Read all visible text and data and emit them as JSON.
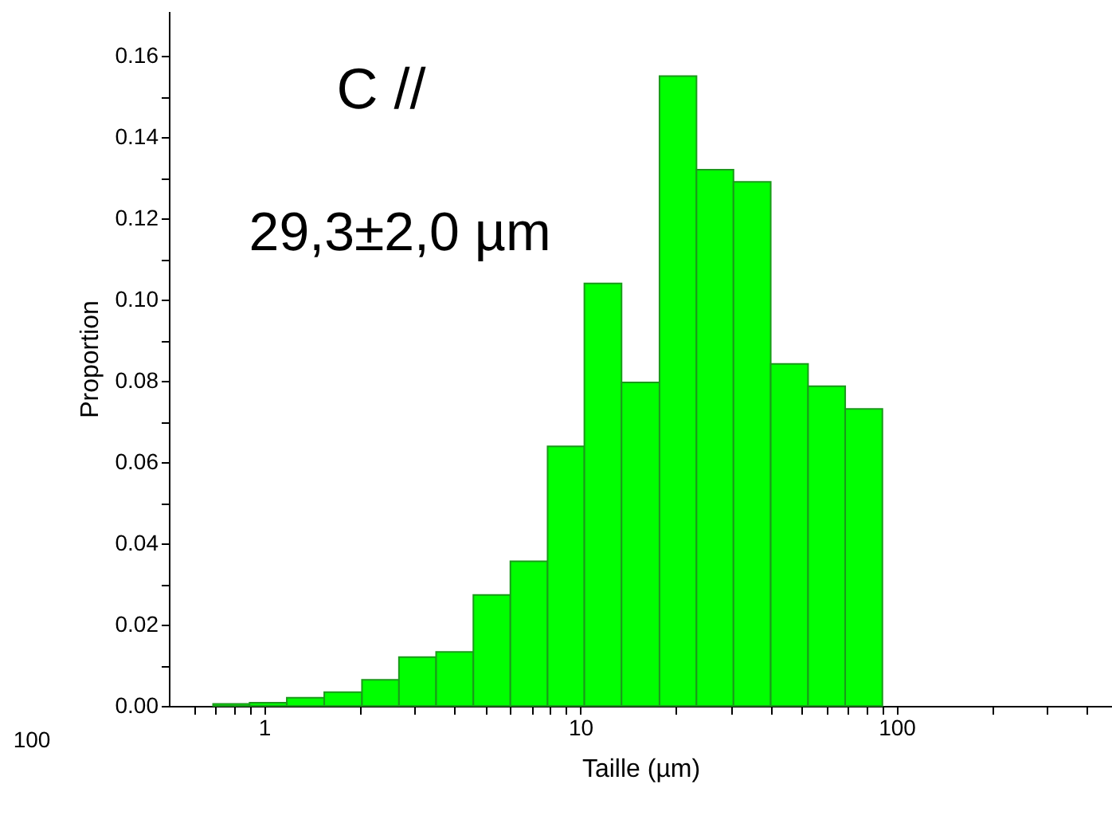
{
  "chart_data": {
    "type": "histogram",
    "xlabel": "Taille (µm)",
    "ylabel": "Proportion",
    "log": "x",
    "bins": [
      0.69,
      0.9,
      1.18,
      1.55,
      2.04,
      2.67,
      3.5,
      4.59,
      6.01,
      7.88,
      10.3,
      13.5,
      17.8,
      23.3,
      30.5,
      40,
      52.5,
      68.8,
      90.2
    ],
    "values": [
      0.0005,
      0.0008,
      0.002,
      0.0034,
      0.0064,
      0.012,
      0.0133,
      0.0273,
      0.0356,
      0.0639,
      0.104,
      0.0796,
      0.155,
      0.132,
      0.129,
      0.0842,
      0.0787,
      0.0731
    ],
    "color": "#00ff00",
    "xlim": [
      0.5,
      480
    ],
    "xticks": [
      {
        "value": 0.6,
        "label": null
      },
      {
        "value": 0.7,
        "label": null
      },
      {
        "value": 0.8,
        "label": null
      },
      {
        "value": 0.9,
        "label": null
      },
      1,
      {
        "value": 2,
        "label": null
      },
      {
        "value": 3,
        "label": null
      },
      {
        "value": 4,
        "label": null
      },
      {
        "value": 5,
        "label": null
      },
      {
        "value": 6,
        "label": null
      },
      {
        "value": 7,
        "label": null
      },
      {
        "value": 8,
        "label": null
      },
      {
        "value": 9,
        "label": null
      },
      10,
      {
        "value": 20,
        "label": null
      },
      {
        "value": 30,
        "label": null
      },
      {
        "value": 40,
        "label": null
      },
      {
        "value": 50,
        "label": null
      },
      {
        "value": 60,
        "label": null
      },
      {
        "value": 70,
        "label": null
      },
      {
        "value": 80,
        "label": null
      },
      {
        "value": 90,
        "label": null
      },
      100,
      {
        "value": 200,
        "label": null
      },
      {
        "value": 300,
        "label": null
      },
      {
        "value": 400,
        "label": null
      }
    ],
    "ylim": [
      0,
      0.171
    ],
    "yticks": [
      {
        "value": 0,
        "label": "0.00"
      },
      {
        "value": 0.01,
        "label": null
      },
      {
        "value": 0.02,
        "label": "0.02"
      },
      {
        "value": 0.03,
        "label": null
      },
      {
        "value": 0.04,
        "label": "0.04"
      },
      {
        "value": 0.05,
        "label": null
      },
      {
        "value": 0.06,
        "label": "0.06"
      },
      {
        "value": 0.07,
        "label": null
      },
      {
        "value": 0.08,
        "label": "0.08"
      },
      {
        "value": 0.09,
        "label": null
      },
      {
        "value": 0.1,
        "label": "0.10"
      },
      {
        "value": 0.11,
        "label": null
      },
      {
        "value": 0.12,
        "label": "0.12"
      },
      {
        "value": 0.13,
        "label": null
      },
      {
        "value": 0.14,
        "label": "0.14"
      },
      {
        "value": 0.15,
        "label": null
      },
      {
        "value": 0.16,
        "label": "0.16"
      }
    ],
    "grid": false,
    "annotations": [
      "C //",
      "29,3±2,0 µm",
      "100"
    ]
  }
}
